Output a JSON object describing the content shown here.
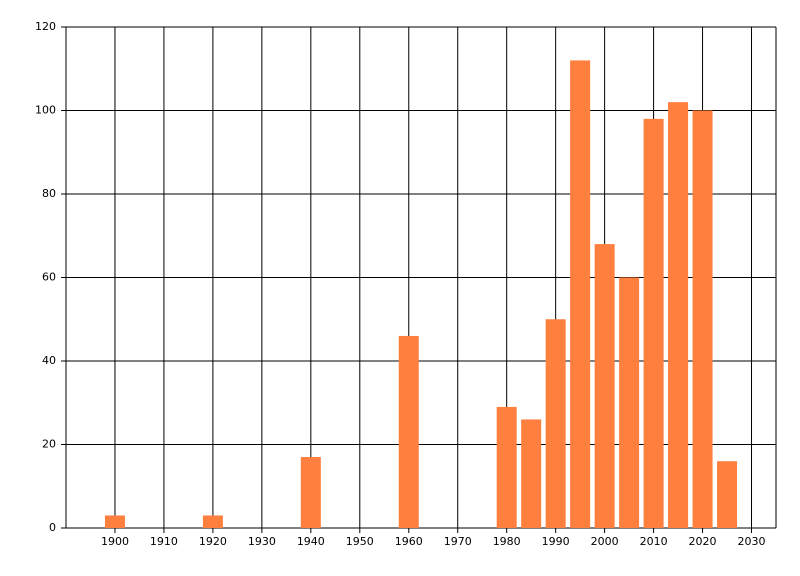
{
  "chart_data": {
    "type": "bar",
    "x": [
      1900,
      1920,
      1940,
      1960,
      1980,
      1985,
      1990,
      1995,
      2000,
      2005,
      2010,
      2015,
      2020,
      2025
    ],
    "values": [
      3,
      3,
      17,
      46,
      29,
      26,
      50,
      112,
      68,
      60,
      98,
      102,
      100,
      16
    ],
    "color": "#ff7f3f",
    "xlim": [
      1890,
      2035
    ],
    "xticks": [
      1900,
      1910,
      1920,
      1930,
      1940,
      1950,
      1960,
      1970,
      1980,
      1990,
      2000,
      2010,
      2020,
      2030
    ],
    "ylim": [
      0,
      120
    ],
    "yticks": [
      0,
      20,
      40,
      60,
      80,
      100,
      120
    ],
    "grid": true
  }
}
